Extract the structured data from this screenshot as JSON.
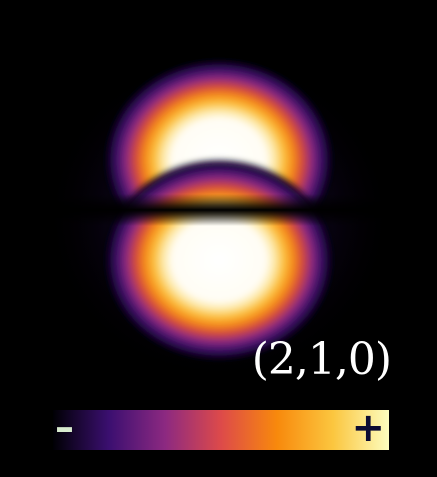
{
  "figure": {
    "state_label": "(2,1,0)",
    "colorbar": {
      "min_symbol": "–",
      "max_symbol": "+",
      "colormap": "inferno",
      "stops": [
        "#000004",
        "#3b0f70",
        "#8c2981",
        "#dd4a4a",
        "#f8890c",
        "#fbc63f",
        "#fcfdbf"
      ],
      "min_symbol_color": "#d8ebcf",
      "max_symbol_color": "#0b0b33"
    }
  }
}
